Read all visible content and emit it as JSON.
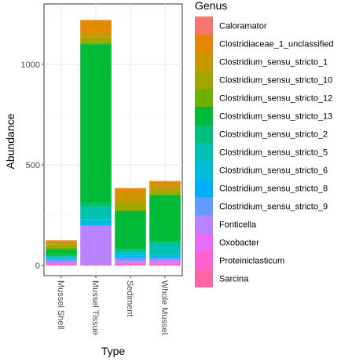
{
  "chart_data": {
    "type": "bar",
    "stacked": true,
    "title": "",
    "xlabel": "Type",
    "ylabel": "Abundance",
    "ylim": [
      -50,
      1300
    ],
    "yticks": [
      0,
      500,
      1000
    ],
    "grid": true,
    "legend_position": "right",
    "legend_title": "Genus",
    "categories": [
      "Mussel Shell",
      "Mussel Tissue",
      "Sediment",
      "Whole Mussel"
    ],
    "series": [
      {
        "name": "Caloramator",
        "color": "#F8766D",
        "values": [
          0,
          0,
          0,
          0
        ]
      },
      {
        "name": "Clostridiaceae_1_unclassified",
        "color": "#E58700",
        "values": [
          8,
          60,
          25,
          15
        ]
      },
      {
        "name": "Clostridium_sensu_stricto_1",
        "color": "#C99800",
        "values": [
          12,
          25,
          45,
          30
        ]
      },
      {
        "name": "Clostridium_sensu_stricto_10",
        "color": "#A3A500",
        "values": [
          15,
          25,
          35,
          20
        ]
      },
      {
        "name": "Clostridium_sensu_stricto_12",
        "color": "#6BB100",
        "values": [
          8,
          10,
          10,
          5
        ]
      },
      {
        "name": "Clostridium_sensu_stricto_13",
        "color": "#00BA38",
        "values": [
          30,
          790,
          190,
          230
        ]
      },
      {
        "name": "Clostridium_sensu_stricto_2",
        "color": "#00BF7D",
        "values": [
          5,
          20,
          5,
          10
        ]
      },
      {
        "name": "Clostridium_sensu_stricto_5",
        "color": "#00C0AF",
        "values": [
          8,
          60,
          15,
          55
        ]
      },
      {
        "name": "Clostridium_sensu_stricto_6",
        "color": "#00BCD8",
        "values": [
          6,
          30,
          12,
          12
        ]
      },
      {
        "name": "Clostridium_sensu_stricto_8",
        "color": "#00B0F6",
        "values": [
          4,
          0,
          8,
          6
        ]
      },
      {
        "name": "Clostridium_sensu_stricto_9",
        "color": "#619CFF",
        "values": [
          5,
          0,
          15,
          8
        ]
      },
      {
        "name": "Fonticella",
        "color": "#B983FF",
        "values": [
          12,
          195,
          10,
          12
        ]
      },
      {
        "name": "Oxobacter",
        "color": "#E76BF3",
        "values": [
          4,
          0,
          5,
          8
        ]
      },
      {
        "name": "Proteiniclasticum",
        "color": "#FD61D1",
        "values": [
          5,
          5,
          7,
          6
        ]
      },
      {
        "name": "Sarcina",
        "color": "#FF67A4",
        "values": [
          3,
          0,
          3,
          3
        ]
      }
    ]
  }
}
